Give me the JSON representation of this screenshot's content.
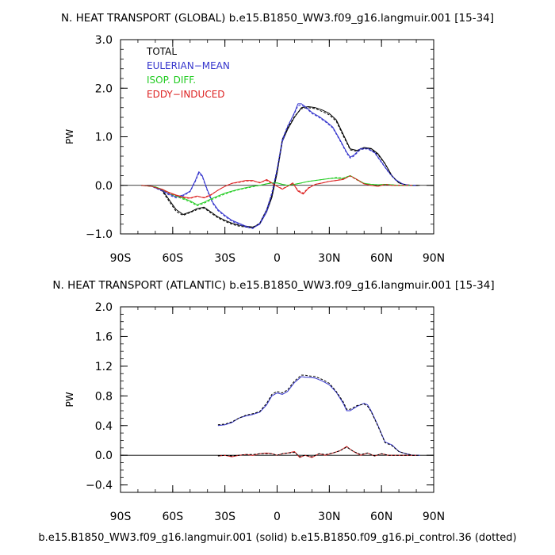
{
  "footer": "b.e15.B1850_WW3.f09_g16.langmuir.001 (solid) b.e15.B1850.f09_g16.pi_control.36 (dotted)",
  "colors": {
    "total": "#000000",
    "eulerian": "#3333cc",
    "isop": "#22cc22",
    "eddy": "#dd2222"
  },
  "chart_data": [
    {
      "type": "line",
      "title": "N. HEAT TRANSPORT (GLOBAL) b.e15.B1850_WW3.f09_g16.langmuir.001 [15-34]",
      "ylabel": "PW",
      "xlabel": "",
      "xlim": [
        -90,
        90
      ],
      "ylim": [
        -1.0,
        3.0
      ],
      "xticks": [
        -90,
        -60,
        -30,
        0,
        30,
        60,
        90
      ],
      "xticklabels": [
        "90S",
        "60S",
        "30S",
        "0",
        "30N",
        "60N",
        "90N"
      ],
      "yticks": [
        -1.0,
        0.0,
        1.0,
        2.0,
        3.0
      ],
      "yticklabels": [
        "−1.0",
        "0.0",
        "1.0",
        "2.0",
        "3.0"
      ],
      "legend": {
        "position": "top-left",
        "entries": [
          "TOTAL",
          "EULERIAN−MEAN",
          "ISOP. DIFF.",
          "EDDY−INDUCED"
        ]
      },
      "series": [
        {
          "name": "TOTAL",
          "color": "#000000",
          "style": "solid",
          "x": [
            -78,
            -72,
            -66,
            -62,
            -58,
            -54,
            -50,
            -46,
            -42,
            -38,
            -34,
            -30,
            -26,
            -22,
            -18,
            -14,
            -10,
            -6,
            -3,
            0,
            3,
            6,
            10,
            14,
            18,
            22,
            26,
            30,
            34,
            38,
            42,
            46,
            50,
            54,
            58,
            62,
            66,
            70,
            74,
            78,
            82
          ],
          "y": [
            0.0,
            -0.02,
            -0.1,
            -0.3,
            -0.5,
            -0.6,
            -0.55,
            -0.48,
            -0.45,
            -0.55,
            -0.65,
            -0.72,
            -0.78,
            -0.82,
            -0.84,
            -0.86,
            -0.8,
            -0.55,
            -0.25,
            0.25,
            0.9,
            1.15,
            1.4,
            1.6,
            1.62,
            1.6,
            1.55,
            1.48,
            1.35,
            1.05,
            0.75,
            0.72,
            0.78,
            0.76,
            0.65,
            0.45,
            0.2,
            0.05,
            0.01,
            0.0,
            0.0
          ]
        },
        {
          "name": "EULERIAN−MEAN",
          "color": "#3333cc",
          "style": "solid",
          "x": [
            -78,
            -72,
            -66,
            -62,
            -58,
            -54,
            -50,
            -47,
            -45,
            -43,
            -40,
            -37,
            -34,
            -30,
            -26,
            -22,
            -18,
            -14,
            -10,
            -6,
            -3,
            0,
            3,
            6,
            10,
            12,
            14,
            17,
            20,
            24,
            28,
            32,
            36,
            40,
            42,
            44,
            48,
            52,
            56,
            60,
            64,
            68,
            72,
            76,
            80
          ],
          "y": [
            0.0,
            -0.02,
            -0.1,
            -0.18,
            -0.24,
            -0.2,
            -0.12,
            0.1,
            0.28,
            0.2,
            -0.1,
            -0.35,
            -0.5,
            -0.62,
            -0.72,
            -0.78,
            -0.84,
            -0.88,
            -0.8,
            -0.55,
            -0.2,
            0.3,
            0.9,
            1.2,
            1.5,
            1.68,
            1.68,
            1.6,
            1.5,
            1.42,
            1.32,
            1.2,
            0.95,
            0.68,
            0.58,
            0.62,
            0.76,
            0.76,
            0.68,
            0.48,
            0.28,
            0.12,
            0.03,
            0.0,
            0.0
          ]
        },
        {
          "name": "ISOP. DIFF.",
          "color": "#22cc22",
          "style": "solid",
          "x": [
            -78,
            -70,
            -65,
            -60,
            -55,
            -50,
            -46,
            -42,
            -38,
            -34,
            -30,
            -26,
            -22,
            -18,
            -14,
            -10,
            -6,
            -3,
            0,
            3,
            6,
            10,
            14,
            18,
            22,
            26,
            30,
            34,
            38,
            42,
            46,
            50,
            54,
            58,
            62,
            66,
            70,
            74,
            78
          ],
          "y": [
            0.0,
            -0.03,
            -0.1,
            -0.18,
            -0.25,
            -0.32,
            -0.4,
            -0.35,
            -0.28,
            -0.22,
            -0.16,
            -0.12,
            -0.08,
            -0.05,
            -0.02,
            0.0,
            0.03,
            0.05,
            0.05,
            0.02,
            0.0,
            0.02,
            0.05,
            0.08,
            0.1,
            0.12,
            0.14,
            0.15,
            0.14,
            0.2,
            0.12,
            0.04,
            0.02,
            0.01,
            0.02,
            0.01,
            0.0,
            0.0,
            0.0
          ]
        },
        {
          "name": "EDDY−INDUCED",
          "color": "#dd2222",
          "style": "solid",
          "x": [
            -78,
            -72,
            -66,
            -62,
            -58,
            -54,
            -50,
            -46,
            -42,
            -38,
            -34,
            -30,
            -26,
            -22,
            -18,
            -14,
            -10,
            -6,
            -3,
            0,
            3,
            6,
            9,
            12,
            15,
            18,
            22,
            26,
            30,
            34,
            38,
            42,
            46,
            50,
            54,
            58,
            62,
            66,
            70,
            74,
            78
          ],
          "y": [
            0.0,
            -0.02,
            -0.08,
            -0.15,
            -0.2,
            -0.24,
            -0.26,
            -0.22,
            -0.26,
            -0.2,
            -0.1,
            -0.02,
            0.04,
            0.07,
            0.1,
            0.1,
            0.05,
            0.12,
            0.05,
            -0.02,
            -0.08,
            -0.02,
            0.05,
            -0.12,
            -0.18,
            -0.06,
            0.02,
            0.05,
            0.08,
            0.1,
            0.12,
            0.2,
            0.12,
            0.03,
            0.0,
            -0.02,
            0.02,
            0.0,
            0.0,
            0.0,
            0.0
          ]
        },
        {
          "name": "TOTAL (control)",
          "color": "#000000",
          "style": "dotted",
          "x": [
            -78,
            -72,
            -66,
            -62,
            -58,
            -54,
            -50,
            -46,
            -42,
            -38,
            -34,
            -30,
            -26,
            -22,
            -18,
            -14,
            -10,
            -6,
            -3,
            0,
            3,
            6,
            10,
            14,
            18,
            22,
            26,
            30,
            34,
            38,
            42,
            46,
            50,
            54,
            58,
            62,
            66,
            70,
            74,
            78,
            82
          ],
          "y": [
            0.0,
            -0.02,
            -0.12,
            -0.33,
            -0.54,
            -0.62,
            -0.56,
            -0.5,
            -0.47,
            -0.57,
            -0.67,
            -0.74,
            -0.8,
            -0.84,
            -0.86,
            -0.87,
            -0.78,
            -0.5,
            -0.2,
            0.3,
            0.95,
            1.18,
            1.42,
            1.58,
            1.6,
            1.58,
            1.52,
            1.45,
            1.32,
            1.02,
            0.73,
            0.7,
            0.76,
            0.75,
            0.63,
            0.44,
            0.19,
            0.05,
            0.01,
            0.0,
            0.0
          ]
        },
        {
          "name": "EULERIAN−MEAN (control)",
          "color": "#3333cc",
          "style": "dotted",
          "x": [
            -78,
            -72,
            -66,
            -62,
            -58,
            -54,
            -50,
            -47,
            -45,
            -43,
            -40,
            -37,
            -34,
            -30,
            -26,
            -22,
            -18,
            -14,
            -10,
            -6,
            -3,
            0,
            3,
            6,
            10,
            12,
            14,
            17,
            20,
            24,
            28,
            32,
            36,
            40,
            42,
            44,
            48,
            52,
            56,
            60,
            64,
            68,
            72,
            76,
            80
          ],
          "y": [
            0.0,
            -0.02,
            -0.12,
            -0.2,
            -0.26,
            -0.22,
            -0.13,
            0.08,
            0.25,
            0.18,
            -0.12,
            -0.37,
            -0.52,
            -0.64,
            -0.74,
            -0.8,
            -0.86,
            -0.89,
            -0.78,
            -0.5,
            -0.15,
            0.35,
            0.95,
            1.22,
            1.48,
            1.64,
            1.65,
            1.58,
            1.48,
            1.4,
            1.3,
            1.18,
            0.93,
            0.66,
            0.56,
            0.6,
            0.74,
            0.75,
            0.67,
            0.47,
            0.27,
            0.11,
            0.03,
            0.0,
            0.0
          ]
        },
        {
          "name": "ISOP. DIFF. (control)",
          "color": "#22cc22",
          "style": "dotted",
          "x": [
            -78,
            -70,
            -65,
            -60,
            -55,
            -50,
            -46,
            -42,
            -38,
            -34,
            -30,
            -26,
            -22,
            -18,
            -14,
            -10,
            -6,
            -3,
            0,
            3,
            6,
            10,
            14,
            18,
            22,
            26,
            30,
            34,
            38,
            42,
            46,
            50,
            54,
            58,
            62,
            66,
            70,
            74,
            78
          ],
          "y": [
            0.0,
            -0.03,
            -0.11,
            -0.2,
            -0.27,
            -0.34,
            -0.42,
            -0.37,
            -0.3,
            -0.24,
            -0.18,
            -0.13,
            -0.09,
            -0.06,
            -0.03,
            0.0,
            0.03,
            0.05,
            0.05,
            0.02,
            0.0,
            0.02,
            0.05,
            0.08,
            0.1,
            0.12,
            0.14,
            0.16,
            0.15,
            0.2,
            0.11,
            0.04,
            0.02,
            0.01,
            0.02,
            0.01,
            0.0,
            0.0,
            0.0
          ]
        },
        {
          "name": "EDDY−INDUCED (control)",
          "color": "#dd2222",
          "style": "dotted",
          "x": [
            -78,
            -72,
            -66,
            -62,
            -58,
            -54,
            -50,
            -46,
            -42,
            -38,
            -34,
            -30,
            -26,
            -22,
            -18,
            -14,
            -10,
            -6,
            -3,
            0,
            3,
            6,
            9,
            12,
            15,
            18,
            22,
            26,
            30,
            34,
            38,
            42,
            46,
            50,
            54,
            58,
            62,
            66,
            70,
            74,
            78
          ],
          "y": [
            0.0,
            -0.02,
            -0.09,
            -0.16,
            -0.21,
            -0.25,
            -0.27,
            -0.23,
            -0.25,
            -0.19,
            -0.1,
            -0.02,
            0.04,
            0.06,
            0.09,
            0.09,
            0.06,
            0.1,
            0.04,
            -0.02,
            -0.07,
            -0.02,
            0.04,
            -0.1,
            -0.16,
            -0.05,
            0.02,
            0.05,
            0.08,
            0.1,
            0.13,
            0.19,
            0.11,
            0.03,
            0.0,
            -0.02,
            0.02,
            0.0,
            0.0,
            0.0,
            0.0
          ]
        }
      ]
    },
    {
      "type": "line",
      "title": "N. HEAT TRANSPORT (ATLANTIC) b.e15.B1850_WW3.f09_g16.langmuir.001 [15-34]",
      "ylabel": "PW",
      "xlabel": "",
      "xlim": [
        -90,
        90
      ],
      "ylim": [
        -0.5,
        2.0
      ],
      "xticks": [
        -90,
        -60,
        -30,
        0,
        30,
        60,
        90
      ],
      "xticklabels": [
        "90S",
        "60S",
        "30S",
        "0",
        "30N",
        "60N",
        "90N"
      ],
      "yticks": [
        -0.4,
        0.0,
        0.4,
        0.8,
        1.2,
        1.6,
        2.0
      ],
      "yticklabels": [
        "−0.4",
        "0.0",
        "0.4",
        "0.8",
        "1.2",
        "1.6",
        "2.0"
      ],
      "series": [
        {
          "name": "EULERIAN−MEAN",
          "color": "#3333cc",
          "style": "solid",
          "x": [
            -34,
            -30,
            -26,
            -22,
            -18,
            -14,
            -10,
            -6,
            -3,
            0,
            3,
            6,
            10,
            14,
            16,
            18,
            22,
            26,
            30,
            34,
            38,
            40,
            42,
            46,
            50,
            52,
            54,
            58,
            62,
            66,
            70,
            74,
            78,
            82
          ],
          "y": [
            0.4,
            0.41,
            0.44,
            0.5,
            0.53,
            0.55,
            0.58,
            0.68,
            0.8,
            0.84,
            0.82,
            0.86,
            0.98,
            1.06,
            1.05,
            1.05,
            1.04,
            1.0,
            0.95,
            0.85,
            0.7,
            0.6,
            0.6,
            0.66,
            0.7,
            0.68,
            0.6,
            0.4,
            0.18,
            0.14,
            0.05,
            0.02,
            0.0,
            0.0
          ]
        },
        {
          "name": "EDDY−INDUCED",
          "color": "#dd2222",
          "style": "solid",
          "x": [
            -34,
            -30,
            -26,
            -22,
            -18,
            -14,
            -10,
            -6,
            -3,
            0,
            3,
            6,
            10,
            13,
            16,
            20,
            24,
            28,
            32,
            36,
            40,
            42,
            44,
            48,
            52,
            56,
            60,
            64,
            68,
            72,
            76,
            80
          ],
          "y": [
            -0.01,
            0.0,
            -0.02,
            0.0,
            0.01,
            0.0,
            0.02,
            0.03,
            0.02,
            0.0,
            0.02,
            0.03,
            0.05,
            -0.03,
            0.0,
            -0.03,
            0.02,
            0.0,
            0.03,
            0.06,
            0.12,
            0.08,
            0.05,
            0.0,
            0.03,
            -0.01,
            0.02,
            0.0,
            0.0,
            0.0,
            0.0,
            0.0
          ]
        },
        {
          "name": "EULERIAN−MEAN (control)",
          "color": "#000000",
          "style": "dotted",
          "x": [
            -34,
            -30,
            -26,
            -22,
            -18,
            -14,
            -10,
            -6,
            -3,
            0,
            3,
            6,
            10,
            14,
            16,
            18,
            22,
            26,
            30,
            34,
            38,
            40,
            42,
            46,
            50,
            52,
            54,
            58,
            62,
            66,
            70,
            74,
            78,
            82
          ],
          "y": [
            0.41,
            0.42,
            0.45,
            0.5,
            0.54,
            0.56,
            0.59,
            0.7,
            0.82,
            0.86,
            0.84,
            0.88,
            1.0,
            1.08,
            1.08,
            1.07,
            1.06,
            1.02,
            0.97,
            0.86,
            0.72,
            0.62,
            0.62,
            0.67,
            0.69,
            0.66,
            0.59,
            0.39,
            0.17,
            0.13,
            0.05,
            0.02,
            0.0,
            0.0
          ]
        },
        {
          "name": "EDDY−INDUCED (control)",
          "color": "#000000",
          "style": "dotted",
          "x": [
            -34,
            -30,
            -26,
            -22,
            -18,
            -14,
            -10,
            -6,
            -3,
            0,
            3,
            6,
            10,
            13,
            16,
            20,
            24,
            28,
            32,
            36,
            40,
            42,
            44,
            48,
            52,
            56,
            60,
            64,
            68,
            72,
            76,
            80
          ],
          "y": [
            -0.01,
            0.0,
            -0.01,
            0.0,
            0.01,
            0.01,
            0.02,
            0.02,
            0.02,
            0.0,
            0.02,
            0.03,
            0.04,
            -0.02,
            0.0,
            -0.02,
            0.02,
            0.01,
            0.03,
            0.06,
            0.11,
            0.08,
            0.05,
            0.01,
            0.03,
            -0.01,
            0.02,
            0.0,
            0.0,
            0.0,
            0.0,
            0.0
          ]
        }
      ]
    }
  ]
}
